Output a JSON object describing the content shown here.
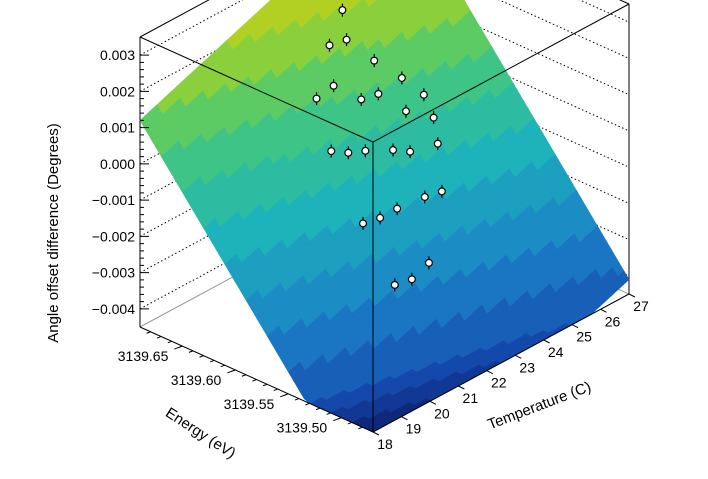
{
  "chart_data": {
    "type": "surface3d",
    "title": "",
    "zlabel": "Angle offset difference (Degrees)",
    "xlabel": "Temperature (C)",
    "ylabel": "Energy (eV)",
    "xlim": [
      18,
      27
    ],
    "ylim": [
      3139.47,
      3139.69
    ],
    "zlim": [
      -0.0045,
      0.0035
    ],
    "x_ticks": [
      18,
      19,
      20,
      21,
      22,
      23,
      24,
      25,
      26,
      27
    ],
    "x_tick_labels": [
      "18",
      "19",
      "20",
      "21",
      "22",
      "23",
      "24",
      "25",
      "26",
      "27"
    ],
    "y_ticks": [
      3139.5,
      3139.55,
      3139.6,
      3139.65
    ],
    "y_tick_labels": [
      "3139.50",
      "3139.55",
      "3139.60",
      "3139.65"
    ],
    "z_ticks": [
      0.003,
      0.002,
      0.001,
      0.0,
      -0.001,
      -0.002,
      -0.003,
      -0.004
    ],
    "z_tick_labels": [
      "0.003",
      "0.002",
      "0.001",
      "0.000",
      "−0.001",
      "−0.002",
      "−0.003",
      "−0.004"
    ],
    "grid": true,
    "colormap": "rainbow",
    "surface": {
      "description": "fitted plane",
      "corners": [
        {
          "temperature": 18,
          "energy": 3139.47,
          "value": -0.0068
        },
        {
          "temperature": 27,
          "energy": 3139.47,
          "value": -0.0041
        },
        {
          "temperature": 27,
          "energy": 3139.69,
          "value": 0.0079
        },
        {
          "temperature": 18,
          "energy": 3139.69,
          "value": 0.0012
        }
      ]
    },
    "points": [
      {
        "temperature": 21.0,
        "energy": 3139.59,
        "value": 0.0004
      },
      {
        "temperature": 21.0,
        "energy": 3139.56,
        "value": -0.0012
      },
      {
        "temperature": 21.0,
        "energy": 3139.53,
        "value": -0.0025
      },
      {
        "temperature": 21.6,
        "energy": 3139.62,
        "value": 0.0012
      },
      {
        "temperature": 21.6,
        "energy": 3139.59,
        "value": 0.0001
      },
      {
        "temperature": 21.6,
        "energy": 3139.56,
        "value": -0.0013
      },
      {
        "temperature": 21.6,
        "energy": 3139.53,
        "value": -0.0026
      },
      {
        "temperature": 22.2,
        "energy": 3139.62,
        "value": 0.0013
      },
      {
        "temperature": 22.2,
        "energy": 3139.59,
        "value": -0.0001
      },
      {
        "temperature": 22.2,
        "energy": 3139.56,
        "value": -0.0013
      },
      {
        "temperature": 22.2,
        "energy": 3139.53,
        "value": -0.0024
      },
      {
        "temperature": 22.8,
        "energy": 3139.64,
        "value": 0.0019
      },
      {
        "temperature": 22.8,
        "energy": 3139.61,
        "value": 0.0008
      },
      {
        "temperature": 22.8,
        "energy": 3139.58,
        "value": -0.0002
      },
      {
        "temperature": 22.8,
        "energy": 3139.55,
        "value": -0.0011
      },
      {
        "temperature": 23.4,
        "energy": 3139.64,
        "value": 0.0018
      },
      {
        "temperature": 23.4,
        "energy": 3139.61,
        "value": 0.0007
      },
      {
        "temperature": 23.4,
        "energy": 3139.58,
        "value": -0.0005
      },
      {
        "temperature": 23.4,
        "energy": 3139.55,
        "value": -0.0012
      },
      {
        "temperature": 24.0,
        "energy": 3139.66,
        "value": 0.0021
      },
      {
        "temperature": 24.0,
        "energy": 3139.63,
        "value": 0.0011
      },
      {
        "temperature": 24.0,
        "energy": 3139.6,
        "value": 0.0001
      },
      {
        "temperature": 24.0,
        "energy": 3139.57,
        "value": -0.0004
      },
      {
        "temperature": 24.6,
        "energy": 3139.62,
        "value": 0.0005
      },
      {
        "temperature": 24.6,
        "energy": 3139.59,
        "value": -0.0002
      },
      {
        "temperature": 25.0,
        "energy": 3139.61,
        "value": 0.0
      }
    ]
  }
}
